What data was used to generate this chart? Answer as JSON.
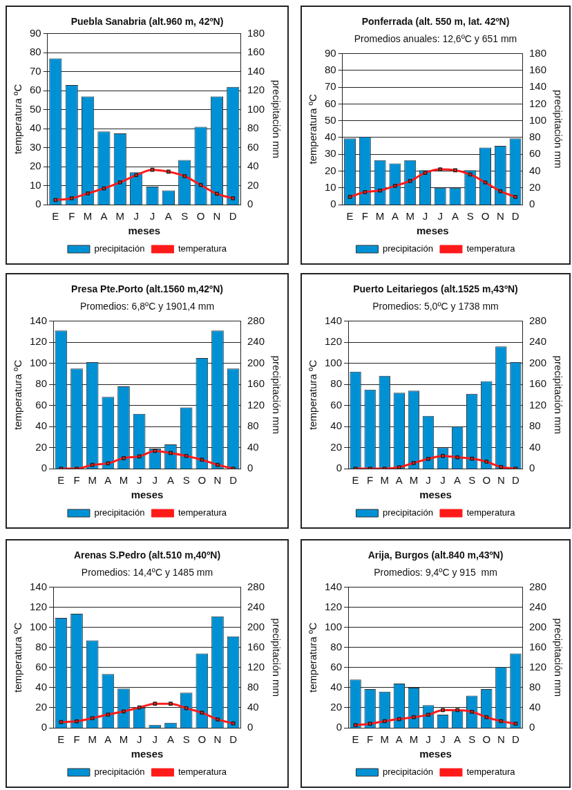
{
  "chart_data": [
    {
      "type": "bar",
      "title": "Puebla Sanabria (alt.960 m, 42ºN)",
      "categories": [
        "E",
        "F",
        "M",
        "A",
        "M",
        "J",
        "J",
        "A",
        "S",
        "O",
        "N",
        "D"
      ],
      "xlabel": "meses",
      "ylabel": "temperatura ºC",
      "y2label": "precipitación mm",
      "ylim": [
        0,
        90
      ],
      "yticks": [
        0,
        10,
        20,
        30,
        40,
        50,
        60,
        70,
        80,
        90
      ],
      "y2lim": [
        0,
        180
      ],
      "y2ticks": [
        0,
        20,
        40,
        60,
        80,
        100,
        120,
        140,
        160,
        180
      ],
      "grid": "y",
      "legend": "bottom",
      "series": [
        {
          "name": "precipitación",
          "axis": "y2",
          "color": "#0091d5",
          "values": [
            154,
            126,
            114,
            77,
            75,
            34,
            19,
            15,
            47,
            82,
            114,
            124
          ]
        },
        {
          "name": "temperatura",
          "type": "line",
          "marker": "square",
          "color": "#ff1a1a",
          "values": [
            2.4,
            3.3,
            5.9,
            8.5,
            11.7,
            15.5,
            18.3,
            17.3,
            15,
            10.3,
            5.7,
            3.3
          ]
        }
      ]
    },
    {
      "type": "bar",
      "title": "Ponferrada (alt. 550 m, lat. 42ºN)",
      "subtitle": "Promedios anuales: 12,6ºC y 651 mm",
      "categories": [
        "E",
        "F",
        "M",
        "A",
        "M",
        "J",
        "J",
        "A",
        "S",
        "O",
        "N",
        "D"
      ],
      "xlabel": "meses",
      "ylabel": "temperatura ºC",
      "y2label": "precipitación mm",
      "ylim": [
        0,
        90
      ],
      "yticks": [
        0,
        10,
        20,
        30,
        40,
        50,
        60,
        70,
        80,
        90
      ],
      "y2lim": [
        0,
        180
      ],
      "y2ticks": [
        0,
        20,
        40,
        60,
        80,
        100,
        120,
        140,
        160,
        180
      ],
      "grid": "y",
      "legend": "bottom",
      "series": [
        {
          "name": "precipitación",
          "axis": "y2",
          "color": "#0091d5",
          "values": [
            79,
            81,
            53,
            49,
            53,
            41,
            20,
            20,
            41,
            68,
            70,
            79
          ]
        },
        {
          "name": "temperatura",
          "type": "line",
          "marker": "square",
          "color": "#ff1a1a",
          "values": [
            4.6,
            7.5,
            8.4,
            11.2,
            14.1,
            18.9,
            21,
            20.5,
            18,
            13.2,
            8,
            4.6
          ]
        }
      ]
    },
    {
      "type": "bar",
      "title": "Presa Pte.Porto (alt.1560 m,42ºN)",
      "subtitle": "Promedios: 6,8ºC y 1901,4 mm",
      "categories": [
        "E",
        "F",
        "M",
        "A",
        "M",
        "J",
        "J",
        "A",
        "S",
        "O",
        "N",
        "D"
      ],
      "xlabel": "meses",
      "ylabel": "temperatura ºC",
      "y2label": "precipitación mm",
      "ylim": [
        0,
        140
      ],
      "yticks": [
        0,
        20,
        40,
        60,
        80,
        100,
        120,
        140
      ],
      "y2lim": [
        0,
        280
      ],
      "y2ticks": [
        0,
        40,
        80,
        120,
        160,
        200,
        240,
        280
      ],
      "grid": "y",
      "legend": "bottom",
      "series": [
        {
          "name": "precipitación",
          "axis": "y2",
          "color": "#0091d5",
          "values": [
            262,
            190,
            202,
            136,
            156,
            104,
            38,
            46,
            116,
            210,
            262,
            190
          ]
        },
        {
          "name": "temperatura",
          "type": "line",
          "marker": "square",
          "color": "#ff1a1a",
          "values": [
            0,
            0,
            3.5,
            5,
            10,
            11.6,
            16.8,
            14.8,
            12,
            8.4,
            3.5,
            0
          ]
        }
      ]
    },
    {
      "type": "bar",
      "title": "Puerto Leitariegos (alt.1525 m,43ºN)",
      "subtitle": "Promedios: 5,0ºC y 1738 mm",
      "categories": [
        "E",
        "F",
        "M",
        "A",
        "M",
        "J",
        "J",
        "A",
        "S",
        "O",
        "N",
        "D"
      ],
      "xlabel": "meses",
      "ylabel": "temperatura ºC",
      "y2label": "precipitación mm",
      "ylim": [
        0,
        140
      ],
      "yticks": [
        0,
        20,
        40,
        60,
        80,
        100,
        120,
        140
      ],
      "y2lim": [
        0,
        280
      ],
      "y2ticks": [
        0,
        40,
        80,
        120,
        160,
        200,
        240,
        280
      ],
      "grid": "y",
      "legend": "bottom",
      "series": [
        {
          "name": "precipitación",
          "axis": "y2",
          "color": "#0091d5",
          "values": [
            184,
            150,
            176,
            144,
            148,
            100,
            40,
            80,
            142,
            166,
            232,
            202
          ]
        },
        {
          "name": "temperatura",
          "type": "line",
          "marker": "square",
          "color": "#ff1a1a",
          "values": [
            0,
            0,
            0,
            1.3,
            5.4,
            9.2,
            12,
            10.7,
            9.5,
            6.6,
            1.5,
            0
          ]
        }
      ]
    },
    {
      "type": "bar",
      "title": "Arenas S.Pedro (alt.510 m,40ºN)",
      "subtitle": "Promedios: 14,4ºC y 1485 mm",
      "categories": [
        "E",
        "F",
        "M",
        "A",
        "M",
        "J",
        "J",
        "A",
        "S",
        "O",
        "N",
        "D"
      ],
      "xlabel": "meses",
      "ylabel": "temperatura ºC",
      "y2label": "precipitación mm",
      "ylim": [
        0,
        140
      ],
      "yticks": [
        0,
        20,
        40,
        60,
        80,
        100,
        120,
        140
      ],
      "y2lim": [
        0,
        280
      ],
      "y2ticks": [
        0,
        40,
        80,
        120,
        160,
        200,
        240,
        280
      ],
      "grid": "y",
      "legend": "bottom",
      "series": [
        {
          "name": "precipitación",
          "axis": "y2",
          "color": "#0091d5",
          "values": [
            219,
            227,
            174,
            107,
            78,
            40,
            6,
            10,
            70,
            148,
            222,
            182
          ]
        },
        {
          "name": "temperatura",
          "type": "line",
          "marker": "square",
          "color": "#ff1a1a",
          "values": [
            5.7,
            6.5,
            9.6,
            13.2,
            16.3,
            20.2,
            24,
            24,
            19.5,
            15,
            8.3,
            4.4
          ]
        }
      ]
    },
    {
      "type": "bar",
      "title": "Arija, Burgos (alt.840 m,43ºN)",
      "subtitle": "Promedios: 9,4ºC y 915  mm",
      "categories": [
        "E",
        "F",
        "M",
        "A",
        "M",
        "J",
        "J",
        "A",
        "S",
        "O",
        "N",
        "D"
      ],
      "xlabel": "meses",
      "ylabel": "temperatura ºC",
      "y2label": "precipitación mm",
      "ylim": [
        0,
        140
      ],
      "yticks": [
        0,
        20,
        40,
        60,
        80,
        100,
        120,
        140
      ],
      "y2lim": [
        0,
        280
      ],
      "y2ticks": [
        0,
        40,
        80,
        120,
        160,
        200,
        240,
        280
      ],
      "grid": "y",
      "legend": "bottom",
      "series": [
        {
          "name": "precipitación",
          "axis": "y2",
          "color": "#0091d5",
          "values": [
            96,
            77,
            72,
            88,
            80,
            45,
            26,
            36,
            64,
            77,
            121,
            148
          ]
        },
        {
          "name": "temperatura",
          "type": "line",
          "marker": "square",
          "color": "#ff1a1a",
          "values": [
            2.6,
            4,
            6.6,
            8.7,
            10.5,
            13,
            17.6,
            17.6,
            16,
            10.5,
            6.6,
            4
          ]
        }
      ]
    }
  ]
}
